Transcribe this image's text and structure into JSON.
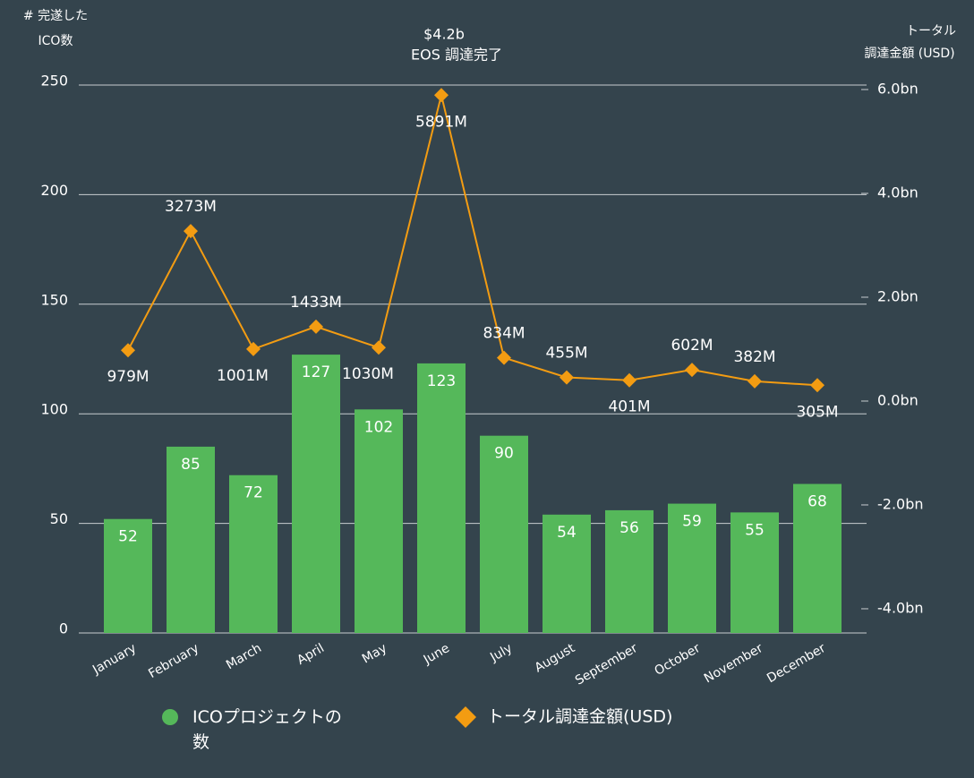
{
  "chart_data": {
    "type": "bar",
    "annotation": [
      "$4.2b",
      "EOS 調達完了"
    ],
    "y_label": [
      "# 完遂した",
      "ICO数"
    ],
    "y2_label": [
      "トータル",
      "調達金額 (USD)"
    ],
    "categories": [
      "January",
      "February",
      "March",
      "April",
      "May",
      "June",
      "July",
      "August",
      "September",
      "October",
      "November",
      "December"
    ],
    "series": [
      {
        "name": "ICOプロジェクトの数",
        "type": "bar",
        "color": "#55b85a",
        "values": [
          52,
          85,
          72,
          127,
          102,
          123,
          90,
          54,
          56,
          59,
          55,
          68
        ]
      },
      {
        "name": "トータル調達金額(USD)",
        "type": "line",
        "axis": "y2",
        "color": "#f39c12",
        "values": [
          979,
          3273,
          1001,
          1433,
          1030,
          5891,
          834,
          455,
          401,
          602,
          382,
          305
        ],
        "value_labels": [
          "979M",
          "3273M",
          "1001M",
          "1433M",
          "1030M",
          "5891M",
          "834M",
          "455M",
          "401M",
          "602M",
          "382M",
          "305M"
        ]
      }
    ],
    "ylim": [
      0,
      250
    ],
    "yticks": [
      0,
      50,
      100,
      150,
      200,
      250
    ],
    "y2lim": [
      -4466,
      6086
    ],
    "y2ticks": [
      {
        "value": -4000,
        "label": "-4.0bn"
      },
      {
        "value": -2000,
        "label": "-2.0bn"
      },
      {
        "value": 0,
        "label": "0.0bn"
      },
      {
        "value": 2000,
        "label": "2.0bn"
      },
      {
        "value": 4000,
        "label": "4.0bn"
      },
      {
        "value": 6000,
        "label": "6.0bn"
      }
    ],
    "grid": true
  }
}
